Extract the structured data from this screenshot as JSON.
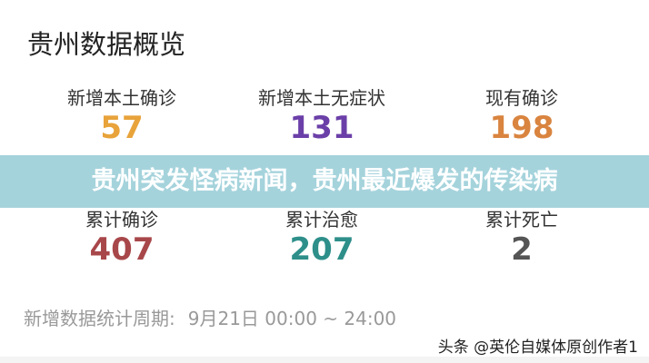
{
  "title": "贵州数据概览",
  "stats": [
    {
      "label": "新增本土确诊",
      "value": "57",
      "color": "#e8a33a"
    },
    {
      "label": "新增本土无症状",
      "value": "131",
      "color": "#6b3fa8"
    },
    {
      "label": "现有确诊",
      "value": "198",
      "color": "#d9843f"
    },
    {
      "label": "累计确诊",
      "value": "407",
      "color": "#a8474a"
    },
    {
      "label": "累计治愈",
      "value": "207",
      "color": "#2e8f8a"
    },
    {
      "label": "累计死亡",
      "value": "2",
      "color": "#555555"
    }
  ],
  "banner": {
    "text": "贵州突发怪病新闻，贵州最近爆发的传染病",
    "color": "#a5d3dc"
  },
  "footer": {
    "label": "新增数据统计周期:",
    "period": "9月21日 00:00 ~ 24:00"
  },
  "watermark": "头条 @英伦自媒体原创作者1"
}
